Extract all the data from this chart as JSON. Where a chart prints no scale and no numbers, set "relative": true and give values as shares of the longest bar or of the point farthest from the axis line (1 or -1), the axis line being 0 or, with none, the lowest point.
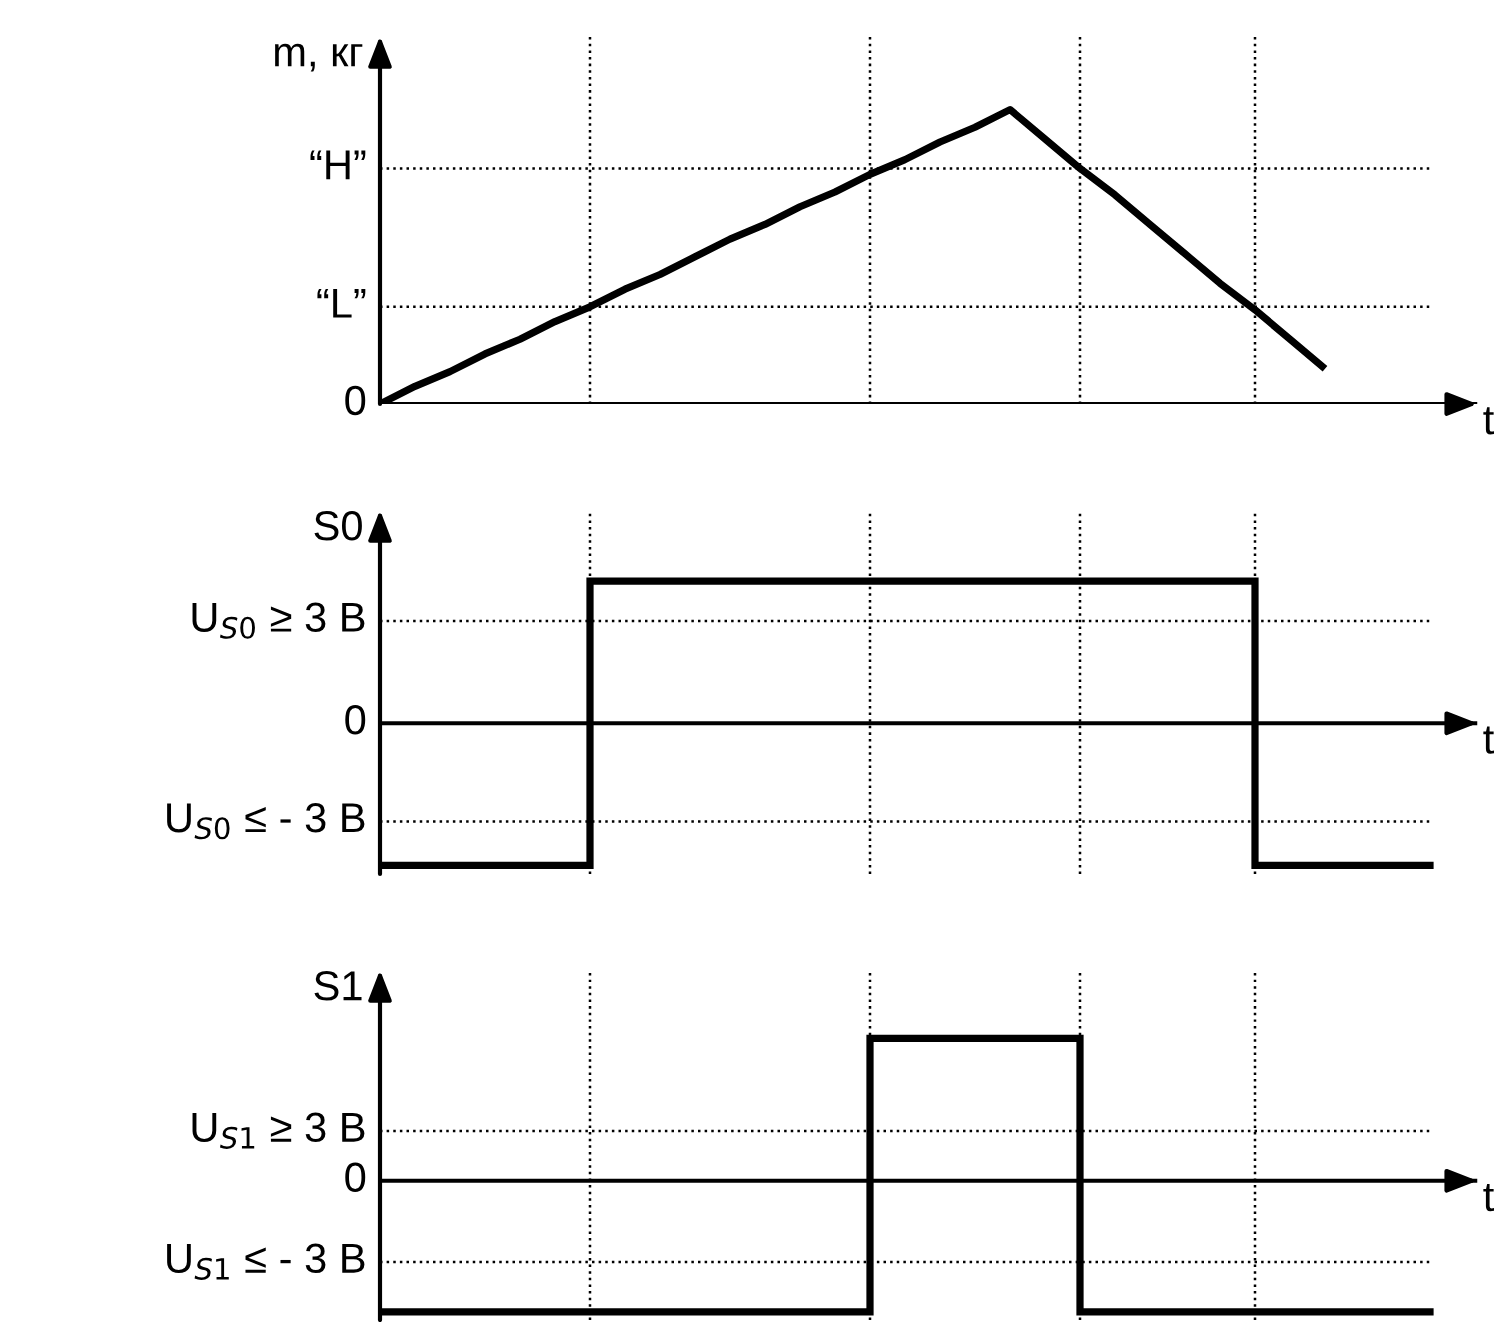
{
  "chart_data": [
    {
      "type": "line",
      "relative": true,
      "ylabel": "m, кг",
      "xlabel": "t",
      "legend": false,
      "grid": "x",
      "categories": [
        null,
        null,
        null,
        null,
        null,
        null,
        null,
        null,
        null,
        null,
        null,
        null,
        null,
        null,
        null,
        null,
        null,
        null,
        null,
        null,
        null,
        null,
        null,
        null,
        null,
        null,
        null,
        null,
        null,
        null,
        null
      ],
      "series": [
        {
          "color": "#000000",
          "values": [
            0,
            0.06,
            0.11,
            0.17,
            0.22,
            0.28,
            0.33,
            0.39,
            0.44,
            0.5,
            0.56,
            0.61,
            0.67,
            0.72,
            0.78,
            0.83,
            0.89,
            0.94,
            1,
            0.9,
            0.8,
            0.71,
            0.61,
            0.51,
            0.41,
            0.32,
            0.22,
            0.12,
            null,
            null,
            null
          ]
        }
      ],
      "ref_lines": [
        {
          "axis": "y",
          "value": 0.8,
          "label": "“H”",
          "line_style": "dotted",
          "color": "#000000"
        },
        {
          "axis": "y",
          "value": 0.33,
          "label": "“L”",
          "line_style": "dotted",
          "color": "#000000"
        },
        {
          "axis": "y",
          "value": 0,
          "label": "0",
          "line_style": "solid",
          "color": "#000000"
        }
      ]
    },
    {
      "type": "step",
      "relative": true,
      "ylabel": "S0",
      "xlabel": "t",
      "legend": false,
      "grid": "x",
      "categories": [
        null,
        null,
        null,
        null,
        null,
        null,
        null,
        null,
        null,
        null,
        null,
        null,
        null,
        null,
        null,
        null,
        null,
        null,
        null,
        null,
        null,
        null,
        null,
        null,
        null,
        null,
        null,
        null,
        null,
        null,
        null
      ],
      "series": [
        {
          "color": "#000000",
          "values": [
            -1,
            -1,
            -1,
            -1,
            -1,
            -1,
            1,
            1,
            1,
            1,
            1,
            1,
            1,
            1,
            1,
            1,
            1,
            1,
            1,
            1,
            1,
            1,
            1,
            1,
            1,
            -1,
            -1,
            -1,
            -1,
            -1,
            -1
          ]
        }
      ],
      "ref_lines": [
        {
          "axis": "y",
          "value": 0.72,
          "label": "U$_{S0}$ ≥ 3 В",
          "line_style": "dotted",
          "color": "#000000"
        },
        {
          "axis": "y",
          "value": -0.69,
          "label": "U$_{S0}$ ≤ - 3 В",
          "line_style": "dotted",
          "color": "#000000"
        },
        {
          "axis": "y",
          "value": 0,
          "label": "0",
          "line_style": "solid",
          "color": "#000000"
        }
      ]
    },
    {
      "type": "step",
      "relative": true,
      "ylabel": "S1",
      "xlabel": "t",
      "legend": false,
      "grid": "x",
      "categories": [
        null,
        null,
        null,
        null,
        null,
        null,
        null,
        null,
        null,
        null,
        null,
        null,
        null,
        null,
        null,
        null,
        null,
        null,
        null,
        null,
        null,
        null,
        null,
        null,
        null,
        null,
        null,
        null,
        null,
        null,
        null
      ],
      "series": [
        {
          "color": "#000000",
          "values": [
            -0.92,
            -0.92,
            -0.92,
            -0.92,
            -0.92,
            -0.92,
            -0.92,
            -0.92,
            -0.92,
            -0.92,
            -0.92,
            -0.92,
            -0.92,
            -0.92,
            1,
            1,
            1,
            1,
            1,
            1,
            -0.92,
            -0.92,
            -0.92,
            -0.92,
            -0.92,
            -0.92,
            -0.92,
            -0.92,
            -0.92,
            -0.92,
            -0.92
          ]
        }
      ],
      "ref_lines": [
        {
          "axis": "y",
          "value": 0.35,
          "label": "U$_{S1}$ ≥ 3 В",
          "line_style": "dotted",
          "color": "#000000"
        },
        {
          "axis": "y",
          "value": -0.57,
          "label": "U$_{S1}$ ≤ - 3 В",
          "line_style": "dotted",
          "color": "#000000"
        },
        {
          "axis": "y",
          "value": 0,
          "label": "0",
          "line_style": "solid",
          "color": "#000000"
        }
      ]
    }
  ]
}
